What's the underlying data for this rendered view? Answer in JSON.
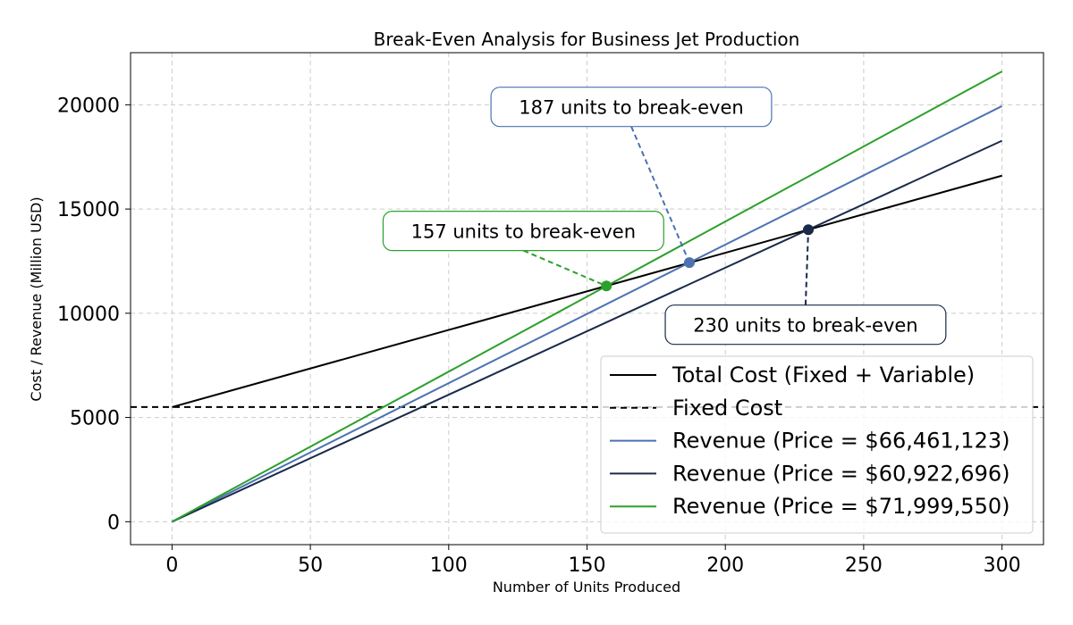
{
  "chart_data": {
    "type": "line",
    "title": "Break-Even Analysis for Business Jet Production",
    "xlabel": "Number of Units Produced",
    "ylabel": "Cost / Revenue (Million USD)",
    "xlim": [
      -15,
      315
    ],
    "ylim": [
      -1100,
      22500
    ],
    "xticks": [
      0,
      50,
      100,
      150,
      200,
      250,
      300
    ],
    "yticks": [
      0,
      5000,
      10000,
      15000,
      20000
    ],
    "grid": true,
    "legend_position": "lower-right",
    "fixed_cost_value": 5500,
    "series": [
      {
        "name": "Total Cost (Fixed + Variable)",
        "color": "#000000",
        "dash": "solid",
        "x": [
          0,
          300
        ],
        "y": [
          5500,
          16600
        ]
      },
      {
        "name": "Fixed Cost",
        "color": "#000000",
        "dash": "dashed",
        "x": [
          -15,
          315
        ],
        "y": [
          5500,
          5500
        ]
      },
      {
        "name": "Revenue (Price = $66,461,123)",
        "color": "#4c72b0",
        "dash": "solid",
        "x": [
          0,
          300
        ],
        "y": [
          0,
          19938
        ]
      },
      {
        "name": "Revenue (Price = $60,922,696)",
        "color": "#1a2a4a",
        "dash": "solid",
        "x": [
          0,
          300
        ],
        "y": [
          0,
          18277
        ]
      },
      {
        "name": "Revenue (Price = $71,999,550)",
        "color": "#2ca02c",
        "dash": "solid",
        "x": [
          0,
          300
        ],
        "y": [
          0,
          21600
        ]
      }
    ],
    "annotations": [
      {
        "text": "187 units to break-even",
        "color": "#4c72b0",
        "point": [
          187,
          12428
        ],
        "label_anchor": [
          166,
          19900
        ]
      },
      {
        "text": "157 units to break-even",
        "color": "#2ca02c",
        "point": [
          157,
          11309
        ],
        "label_anchor": [
          127,
          13950
        ]
      },
      {
        "text": "230 units to break-even",
        "color": "#1a2a4a",
        "point": [
          230,
          14010
        ],
        "label_anchor": [
          229,
          9450
        ]
      }
    ]
  }
}
